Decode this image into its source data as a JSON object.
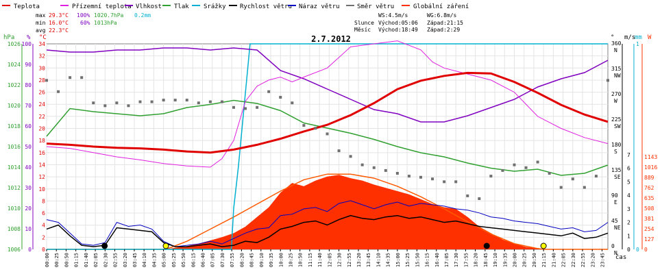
{
  "chart_data": {
    "type": "line",
    "title": "2.7.2012",
    "legend": [
      {
        "label": "Teplota",
        "color": "#e00000"
      },
      {
        "label": "Přízemní teplota",
        "color": "#e020e0"
      },
      {
        "label": "Vlhkost",
        "color": "#8000c0"
      },
      {
        "label": "Tlak",
        "color": "#30a030"
      },
      {
        "label": "Srážky",
        "color": "#00b0d0"
      },
      {
        "label": "Rychlost větru",
        "color": "#000000"
      },
      {
        "label": "Náraz větru",
        "color": "#0000c0"
      },
      {
        "label": "Směr větru",
        "color": "#707070"
      },
      {
        "label": "Globální záření",
        "color": "#ff3000"
      }
    ],
    "stats": {
      "max": {
        "label": "max",
        "temp": "29.3°C",
        "hum": "100%",
        "press": "1020.7hPa",
        "rain": "0.2mm"
      },
      "min": {
        "label": "min",
        "temp": "16.0°C",
        "hum": "60%",
        "press": "1013hPa"
      },
      "avg": {
        "label": "avg",
        "temp": "22.3°C"
      }
    },
    "info": {
      "ws": "WS:4.5m/s",
      "wg": "WG:6.8m/s",
      "sun_label": "Slunce",
      "sun_rise": "Východ:05:06",
      "sun_set": "Západ:21:15",
      "moon_label": "Měsíc",
      "moon_rise": "Východ:18:49",
      "moon_set": "Západ:2:29"
    },
    "axes": {
      "hpa": {
        "label": "hPa",
        "range": [
          1006,
          1026
        ],
        "ticks": [
          "1006",
          "1008",
          "1010",
          "1012",
          "1014",
          "1016",
          "1018",
          "1020",
          "1022",
          "1024",
          "1026"
        ]
      },
      "pct": {
        "label": "%",
        "range": [
          0,
          100
        ],
        "ticks": [
          "0",
          "10",
          "20",
          "30",
          "40",
          "50",
          "60",
          "70",
          "80",
          "90",
          "100"
        ]
      },
      "temp": {
        "label": "°C",
        "range": [
          0,
          34
        ],
        "ticks": [
          "0",
          "2",
          "4",
          "6",
          "8",
          "10",
          "12",
          "14",
          "16",
          "18",
          "20",
          "22",
          "24",
          "26",
          "28",
          "30",
          "32",
          "34"
        ]
      },
      "dir": {
        "label": "°",
        "ticks": [
          {
            "v": 0,
            "t": "0"
          },
          {
            "v": 45,
            "t": "45"
          },
          {
            "v": 90,
            "t": "90"
          },
          {
            "v": 135,
            "t": "135"
          },
          {
            "v": 180,
            "t": "180"
          },
          {
            "v": 225,
            "t": "225"
          },
          {
            "v": 270,
            "t": "270"
          },
          {
            "v": 315,
            "t": "315"
          },
          {
            "v": 360,
            "t": "360"
          }
        ],
        "compass": [
          {
            "v": 0,
            "t": "N"
          },
          {
            "v": 45,
            "t": "NE"
          },
          {
            "v": 90,
            "t": "E"
          },
          {
            "v": 135,
            "t": "SE"
          },
          {
            "v": 180,
            "t": "S"
          },
          {
            "v": 225,
            "t": "SW"
          },
          {
            "v": 270,
            "t": "W"
          },
          {
            "v": 315,
            "t": "NW"
          },
          {
            "v": 360,
            "t": "N"
          }
        ]
      },
      "ms": {
        "label": "m/s",
        "range": [
          0,
          7
        ],
        "ticks": [
          "0",
          "1",
          "2",
          "3",
          "4",
          "5",
          "6",
          "7"
        ]
      },
      "mm": {
        "label": "mm",
        "ticks": [
          "0",
          "1"
        ]
      },
      "w": {
        "label": "W",
        "range": [
          0,
          1143
        ],
        "ticks": [
          "0",
          "127",
          "254",
          "381",
          "508",
          "635",
          "762",
          "889",
          "1016",
          "1143"
        ]
      },
      "time_label": "čas",
      "time_ticks": [
        "00:00",
        "00:25",
        "00:50",
        "01:15",
        "01:40",
        "02:05",
        "02:30",
        "02:55",
        "03:20",
        "03:45",
        "04:10",
        "04:35",
        "05:00",
        "05:25",
        "05:50",
        "06:15",
        "06:40",
        "07:05",
        "07:30",
        "07:55",
        "08:20",
        "08:45",
        "09:10",
        "09:35",
        "10:00",
        "10:25",
        "10:50",
        "11:15",
        "11:40",
        "12:05",
        "12:30",
        "12:55",
        "13:20",
        "13:45",
        "14:10",
        "14:35",
        "15:00",
        "15:25",
        "15:50",
        "16:15",
        "16:40",
        "17:05",
        "17:30",
        "17:55",
        "18:20",
        "18:45",
        "19:10",
        "19:35",
        "20:00",
        "20:25",
        "20:50",
        "21:15",
        "21:40",
        "22:05",
        "22:30",
        "22:55",
        "23:20",
        "23:45"
      ]
    },
    "series": {
      "teplota": {
        "x": [
          0,
          1,
          2,
          3,
          4,
          5,
          6,
          7,
          8,
          9,
          10,
          11,
          12,
          13,
          14,
          15,
          16,
          17,
          18,
          19,
          20,
          21,
          22,
          23,
          24
        ],
        "y": [
          17.5,
          17.3,
          17.0,
          16.8,
          16.7,
          16.5,
          16.2,
          16.0,
          16.5,
          17.3,
          18.3,
          19.5,
          20.6,
          22.2,
          24.2,
          26.5,
          27.9,
          28.7,
          29.2,
          29.1,
          27.7,
          25.9,
          23.9,
          22.3,
          21.1
        ]
      },
      "prizemni": {
        "x": [
          0,
          1,
          2,
          3,
          4,
          5,
          6,
          7,
          7.5,
          8,
          8.5,
          9,
          9.5,
          10,
          10.5,
          11,
          12,
          13,
          14,
          15,
          16,
          16.5,
          17,
          18,
          19,
          20,
          21,
          22,
          23,
          24
        ],
        "y": [
          17,
          16.7,
          16.0,
          15.3,
          14.8,
          14.2,
          13.8,
          13.6,
          15.0,
          18.0,
          24.5,
          27.0,
          28.0,
          28.5,
          27.7,
          28.5,
          30.0,
          33.5,
          34.0,
          34.5,
          33.0,
          31.0,
          30.0,
          29.0,
          28.0,
          26.0,
          22.0,
          20.0,
          18.5,
          17.5
        ]
      },
      "vlhkost": {
        "x": [
          0,
          1,
          2,
          3,
          4,
          5,
          6,
          7,
          8,
          9,
          10,
          11,
          12,
          13,
          14,
          15,
          16,
          17,
          18,
          19,
          20,
          21,
          22,
          23,
          24
        ],
        "y": [
          97,
          96,
          96,
          97,
          97,
          98,
          98,
          97,
          98,
          97,
          87,
          83,
          78,
          73,
          68,
          66,
          62,
          62,
          65,
          69,
          73,
          79,
          83,
          86,
          92
        ]
      },
      "tlak": {
        "x": [
          0,
          1,
          2,
          3,
          4,
          5,
          6,
          7,
          8,
          9,
          10,
          11,
          12,
          13,
          14,
          15,
          16,
          17,
          18,
          19,
          20,
          21,
          22,
          23,
          24
        ],
        "y": [
          1017,
          1019.7,
          1019.4,
          1019.2,
          1019.0,
          1019.2,
          1019.8,
          1020.1,
          1020.5,
          1020.2,
          1019.5,
          1018.3,
          1017.8,
          1017.3,
          1016.7,
          1016.0,
          1015.4,
          1015.0,
          1014.4,
          1013.9,
          1013.6,
          1013.8,
          1013.2,
          1013.4,
          1014.2
        ]
      },
      "srazky": {
        "x": [
          0,
          7.9,
          8.0,
          8.2,
          8.7,
          24
        ],
        "y": [
          0,
          0,
          0.2,
          0.4,
          1.0,
          1.0
        ]
      },
      "rychlost": {
        "x": [
          0,
          0.5,
          1,
          1.5,
          2,
          2.5,
          3,
          3.5,
          4,
          4.5,
          5,
          5.5,
          6,
          6.5,
          7,
          7.5,
          8,
          8.5,
          9,
          9.5,
          10,
          10.5,
          11,
          11.5,
          12,
          12.5,
          13,
          13.5,
          14,
          14.5,
          15,
          15.5,
          16,
          16.5,
          17,
          17.5,
          18,
          18.5,
          19,
          19.5,
          20,
          20.5,
          21,
          21.5,
          22,
          22.5,
          23,
          23.5,
          24
        ],
        "y": [
          1.5,
          1.8,
          1.0,
          0.3,
          0.2,
          0.3,
          1.6,
          1.5,
          1.4,
          1.3,
          0.5,
          0.2,
          0.2,
          0.3,
          0.4,
          0.2,
          0.3,
          0.6,
          0.5,
          0.9,
          1.5,
          1.7,
          2.0,
          2.1,
          1.8,
          2.2,
          2.5,
          2.3,
          2.2,
          2.4,
          2.5,
          2.3,
          2.4,
          2.2,
          2.0,
          2.1,
          1.9,
          1.7,
          1.6,
          1.5,
          1.4,
          1.3,
          1.2,
          1.1,
          1.0,
          1.2,
          0.8,
          0.9,
          1.2
        ]
      },
      "naraz": {
        "x": [
          0,
          0.5,
          1,
          1.5,
          2,
          2.5,
          3,
          3.5,
          4,
          4.5,
          5,
          5.5,
          6,
          6.5,
          7,
          7.5,
          8,
          8.5,
          9,
          9.5,
          10,
          10.5,
          11,
          11.5,
          12,
          12.5,
          13,
          13.5,
          14,
          14.5,
          15,
          15.5,
          16,
          16.5,
          17,
          17.5,
          18,
          18.5,
          19,
          19.5,
          20,
          20.5,
          21,
          21.5,
          22,
          22.5,
          23,
          23.5,
          24
        ],
        "y": [
          2.2,
          2.0,
          1.2,
          0.4,
          0.3,
          0.5,
          2.0,
          1.7,
          1.8,
          1.5,
          0.6,
          0.2,
          0.3,
          0.4,
          0.6,
          0.4,
          0.8,
          1.2,
          1.5,
          1.6,
          2.5,
          2.6,
          3.0,
          3.1,
          2.8,
          3.4,
          3.6,
          3.3,
          3.0,
          3.3,
          3.5,
          3.2,
          3.4,
          3.3,
          3.2,
          3.0,
          2.9,
          2.7,
          2.4,
          2.3,
          2.1,
          2.0,
          1.9,
          1.7,
          1.5,
          1.6,
          1.3,
          1.4,
          2.0
        ]
      },
      "smer": {
        "x": [
          0,
          0.5,
          1,
          1.5,
          2,
          2.5,
          3,
          3.5,
          4,
          4.5,
          5,
          5.5,
          6,
          6.5,
          7,
          7.5,
          8,
          8.5,
          9,
          9.5,
          10,
          10.5,
          11,
          11.5,
          12,
          12.5,
          13,
          13.5,
          14,
          14.5,
          15,
          15.5,
          16,
          16.5,
          17,
          17.5,
          18,
          18.5,
          19,
          19.5,
          20,
          20.5,
          21,
          21.5,
          22,
          22.5,
          23,
          23.5,
          24
        ],
        "y": [
          300,
          280,
          305,
          305,
          260,
          255,
          260,
          255,
          262,
          262,
          265,
          265,
          265,
          260,
          262,
          262,
          252,
          250,
          252,
          280,
          270,
          260,
          220,
          215,
          205,
          175,
          165,
          150,
          145,
          140,
          135,
          130,
          128,
          125,
          120,
          120,
          95,
          90,
          130,
          140,
          150,
          145,
          155,
          135,
          110,
          125,
          110,
          130,
          300
        ]
      },
      "zareni": {
        "x": [
          0,
          5.1,
          5.5,
          6,
          6.5,
          7,
          7.5,
          8,
          8.5,
          9,
          9.5,
          10,
          10.5,
          11,
          11.5,
          12,
          12.5,
          13,
          13.5,
          14,
          14.5,
          15,
          15.5,
          16,
          16.5,
          17,
          17.5,
          18,
          18.5,
          19,
          19.5,
          20,
          20.5,
          21,
          21.2,
          24
        ],
        "y": [
          0,
          0,
          20,
          40,
          70,
          110,
          150,
          200,
          280,
          400,
          520,
          700,
          820,
          780,
          850,
          900,
          920,
          880,
          850,
          800,
          760,
          720,
          680,
          620,
          560,
          520,
          500,
          400,
          280,
          200,
          120,
          70,
          30,
          10,
          0,
          0
        ]
      },
      "model": {
        "x": [
          0,
          5.1,
          6,
          7,
          8,
          9,
          10,
          11,
          12,
          13,
          14,
          15,
          16,
          17,
          18,
          19,
          20,
          21,
          21.25,
          24
        ],
        "y": [
          0,
          0,
          100,
          250,
          400,
          560,
          720,
          860,
          930,
          930,
          880,
          780,
          650,
          500,
          340,
          190,
          70,
          10,
          0,
          0
        ]
      }
    }
  }
}
